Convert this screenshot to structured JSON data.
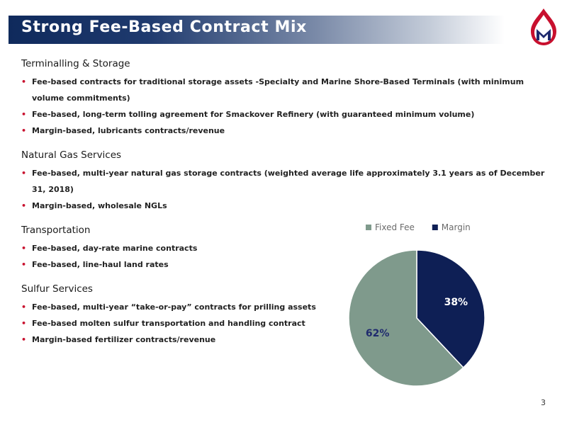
{
  "slide": {
    "title": "Strong Fee-Based Contract Mix",
    "page_number": "3",
    "colors": {
      "title_bar": "#0f2a5c",
      "bullet": "#c8102e",
      "logo_red": "#c8102e",
      "logo_navy": "#1f2a6e"
    }
  },
  "sections": [
    {
      "heading": "Terminalling & Storage",
      "bullets": [
        "Fee-based contracts for traditional storage assets -Specialty and Marine Shore-Based Terminals (with minimum volume commitments)",
        "Fee-based, long-term tolling agreement for Smackover Refinery (with guaranteed minimum volume)",
        "Margin-based, lubricants contracts/revenue"
      ]
    },
    {
      "heading": "Natural Gas Services",
      "bullets": [
        "Fee-based, multi-year natural gas storage contracts (weighted average life approximately 3.1 years as of December 31, 2018)",
        "Margin-based, wholesale NGLs"
      ]
    },
    {
      "heading": "Transportation",
      "bullets": [
        "Fee-based, day-rate marine contracts",
        "Fee-based, line-haul land rates"
      ]
    },
    {
      "heading": "Sulfur Services",
      "bullets": [
        "Fee-based, multi-year “take-or-pay” contracts for prilling assets",
        "Fee-based molten sulfur transportation and handling contract",
        "Margin-based fertilizer contracts/revenue"
      ]
    }
  ],
  "chart_data": {
    "type": "pie",
    "legend_position": "top",
    "slices": [
      {
        "name": "Fixed Fee",
        "value": 62,
        "label": "62%",
        "color": "#7f9a8c",
        "label_color": "#1f2a6e"
      },
      {
        "name": "Margin",
        "value": 38,
        "label": "38%",
        "color": "#0e1f55",
        "label_color": "#ffffff"
      }
    ]
  }
}
